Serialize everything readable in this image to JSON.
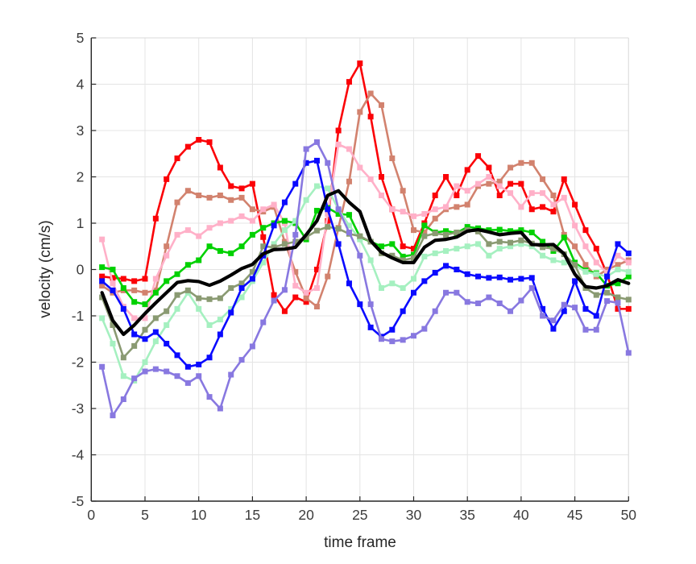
{
  "chart_data": {
    "type": "line",
    "title": "",
    "xlabel": "time frame",
    "ylabel": "velocity (cm/s)",
    "xlim": [
      0,
      50
    ],
    "ylim": [
      -5,
      5
    ],
    "xticks": [
      0,
      5,
      10,
      15,
      20,
      25,
      30,
      35,
      40,
      45,
      50
    ],
    "yticks": [
      -5,
      -4,
      -3,
      -2,
      -1,
      0,
      1,
      2,
      3,
      4,
      5
    ],
    "grid": true,
    "legend_position": "none",
    "background": "#ffffff",
    "axis_color": "#262626",
    "box_color": "#e0e0e0",
    "grid_color": "#e4e4e4",
    "tick_label_color": "#3c3c3c",
    "marker": "square",
    "x": [
      1,
      2,
      3,
      4,
      5,
      6,
      7,
      8,
      9,
      10,
      11,
      12,
      13,
      14,
      15,
      16,
      17,
      18,
      19,
      20,
      21,
      22,
      23,
      24,
      25,
      26,
      27,
      28,
      29,
      30,
      31,
      32,
      33,
      34,
      35,
      36,
      37,
      38,
      39,
      40,
      41,
      42,
      43,
      44,
      45,
      46,
      47,
      48,
      49,
      50
    ],
    "series": [
      {
        "name": "red-trace",
        "color": "#fb0207",
        "line_width": 2.6,
        "marker_size": 7,
        "values": [
          -0.15,
          -0.18,
          -0.2,
          -0.25,
          -0.2,
          1.1,
          1.95,
          2.4,
          2.65,
          2.8,
          2.75,
          2.2,
          1.8,
          1.75,
          1.85,
          0.7,
          -0.55,
          -0.9,
          -0.6,
          -0.7,
          0.0,
          1.05,
          3.0,
          4.05,
          4.45,
          3.3,
          2.0,
          1.3,
          0.5,
          0.45,
          1.0,
          1.6,
          2.0,
          1.6,
          2.15,
          2.45,
          2.2,
          1.6,
          1.85,
          1.85,
          1.3,
          1.35,
          1.25,
          1.95,
          1.4,
          0.85,
          0.45,
          -0.1,
          -0.85,
          -0.85
        ]
      },
      {
        "name": "dark-salmon-trace",
        "color": "#d2826e",
        "line_width": 2.6,
        "marker_size": 7,
        "values": [
          -0.35,
          -0.5,
          -0.45,
          -0.45,
          -0.5,
          -0.45,
          0.5,
          1.45,
          1.7,
          1.6,
          1.55,
          1.6,
          1.5,
          1.55,
          1.3,
          1.25,
          1.35,
          0.6,
          -0.05,
          -0.62,
          -0.8,
          -0.15,
          0.9,
          1.9,
          3.4,
          3.8,
          3.55,
          2.4,
          1.7,
          0.85,
          0.8,
          1.1,
          1.3,
          1.35,
          1.4,
          1.8,
          1.85,
          1.9,
          2.2,
          2.3,
          2.3,
          1.95,
          1.6,
          0.75,
          0.5,
          0.1,
          -0.15,
          0.0,
          0.1,
          0.2
        ]
      },
      {
        "name": "pink-trace",
        "color": "#ffb0c8",
        "line_width": 2.6,
        "marker_size": 7,
        "values": [
          0.65,
          -0.3,
          -0.8,
          -1.05,
          -1.05,
          -0.2,
          0.3,
          0.75,
          0.85,
          0.72,
          0.9,
          1.0,
          1.05,
          1.15,
          1.05,
          1.3,
          1.4,
          1.0,
          -0.35,
          -0.5,
          -0.4,
          1.2,
          2.7,
          2.6,
          2.2,
          1.95,
          1.6,
          1.3,
          1.25,
          1.15,
          1.2,
          1.3,
          1.35,
          1.8,
          1.7,
          1.85,
          2.0,
          1.8,
          1.65,
          1.35,
          1.65,
          1.65,
          1.4,
          1.55,
          0.95,
          0.5,
          0.15,
          -0.07,
          0.3,
          0.15
        ]
      },
      {
        "name": "green-trace",
        "color": "#00d100",
        "line_width": 2.6,
        "marker_size": 7,
        "values": [
          0.05,
          0.0,
          -0.4,
          -0.7,
          -0.75,
          -0.5,
          -0.25,
          -0.1,
          0.1,
          0.2,
          0.5,
          0.4,
          0.35,
          0.5,
          0.75,
          0.9,
          1.0,
          1.05,
          1.0,
          0.65,
          1.27,
          1.33,
          1.2,
          1.18,
          0.7,
          0.6,
          0.5,
          0.55,
          0.28,
          0.32,
          0.95,
          0.8,
          0.83,
          0.79,
          0.92,
          0.89,
          0.85,
          0.86,
          0.83,
          0.85,
          0.8,
          0.6,
          0.4,
          0.69,
          0.15,
          -0.02,
          -0.08,
          -0.35,
          -0.3,
          -0.15
        ]
      },
      {
        "name": "pale-green-trace",
        "color": "#a5f0c0",
        "line_width": 2.6,
        "marker_size": 7,
        "values": [
          -1.05,
          -1.6,
          -2.3,
          -2.4,
          -2.0,
          -1.55,
          -1.2,
          -0.85,
          -0.5,
          -0.85,
          -1.2,
          -1.08,
          -0.85,
          -0.6,
          -0.25,
          0.15,
          0.55,
          0.85,
          1.05,
          1.5,
          1.8,
          1.75,
          1.3,
          0.95,
          0.65,
          0.2,
          -0.4,
          -0.3,
          -0.4,
          -0.2,
          0.28,
          0.35,
          0.4,
          0.45,
          0.5,
          0.55,
          0.3,
          0.45,
          0.5,
          0.55,
          0.5,
          0.3,
          0.2,
          0.15,
          0.1,
          -0.05,
          -0.1,
          -0.15,
          0.0,
          -0.05
        ]
      },
      {
        "name": "dark-sea-green-trace",
        "color": "#8a9a72",
        "line_width": 2.6,
        "marker_size": 7,
        "values": [
          -0.6,
          -1.2,
          -1.9,
          -1.65,
          -1.3,
          -1.05,
          -0.9,
          -0.55,
          -0.45,
          -0.62,
          -0.64,
          -0.62,
          -0.4,
          -0.3,
          -0.05,
          0.5,
          0.48,
          0.55,
          0.6,
          0.7,
          0.84,
          0.92,
          0.88,
          0.77,
          0.72,
          0.6,
          0.35,
          0.3,
          0.2,
          0.25,
          0.72,
          0.78,
          0.75,
          0.8,
          0.85,
          0.82,
          0.55,
          0.6,
          0.58,
          0.63,
          0.56,
          0.48,
          0.45,
          0.33,
          0.1,
          -0.4,
          -0.55,
          -0.5,
          -0.6,
          -0.65
        ]
      },
      {
        "name": "blue-trace",
        "color": "#0a0aff",
        "line_width": 2.6,
        "marker_size": 7,
        "values": [
          -0.25,
          -0.45,
          -0.85,
          -1.4,
          -1.5,
          -1.35,
          -1.6,
          -1.85,
          -2.1,
          -2.05,
          -1.9,
          -1.4,
          -0.93,
          -0.4,
          -0.2,
          0.3,
          0.95,
          1.45,
          1.85,
          2.3,
          2.35,
          1.3,
          0.55,
          -0.3,
          -0.75,
          -1.25,
          -1.45,
          -1.3,
          -0.9,
          -0.5,
          -0.25,
          -0.07,
          0.08,
          0.0,
          -0.1,
          -0.15,
          -0.18,
          -0.17,
          -0.22,
          -0.2,
          -0.18,
          -0.85,
          -1.28,
          -0.9,
          -0.25,
          -0.85,
          -1.0,
          -0.15,
          0.55,
          0.35
        ]
      },
      {
        "name": "medium-purple-trace",
        "color": "#8878e0",
        "line_width": 2.6,
        "marker_size": 7,
        "values": [
          -2.1,
          -3.15,
          -2.8,
          -2.35,
          -2.2,
          -2.15,
          -2.2,
          -2.3,
          -2.45,
          -2.3,
          -2.75,
          -3.0,
          -2.27,
          -1.95,
          -1.66,
          -1.14,
          -0.67,
          -0.44,
          0.75,
          2.6,
          2.75,
          2.3,
          1.3,
          0.8,
          0.3,
          -0.75,
          -1.5,
          -1.55,
          -1.52,
          -1.43,
          -1.28,
          -0.9,
          -0.5,
          -0.5,
          -0.7,
          -0.73,
          -0.6,
          -0.73,
          -0.9,
          -0.67,
          -0.4,
          -1.0,
          -1.1,
          -0.76,
          -0.82,
          -1.3,
          -1.3,
          -0.68,
          -0.72,
          -1.8
        ]
      },
      {
        "name": "black-mean-trace",
        "color": "#000000",
        "line_width": 4.2,
        "marker_size": 0,
        "values": [
          -0.5,
          -1.1,
          -1.4,
          -1.2,
          -0.95,
          -0.72,
          -0.5,
          -0.28,
          -0.24,
          -0.26,
          -0.34,
          -0.25,
          -0.12,
          0.02,
          0.11,
          0.34,
          0.43,
          0.44,
          0.48,
          0.75,
          1.05,
          1.6,
          1.7,
          1.45,
          1.25,
          0.62,
          0.37,
          0.25,
          0.15,
          0.15,
          0.48,
          0.63,
          0.65,
          0.7,
          0.83,
          0.86,
          0.81,
          0.75,
          0.78,
          0.8,
          0.54,
          0.53,
          0.54,
          0.34,
          -0.1,
          -0.37,
          -0.4,
          -0.35,
          -0.22,
          -0.3
        ]
      }
    ]
  }
}
